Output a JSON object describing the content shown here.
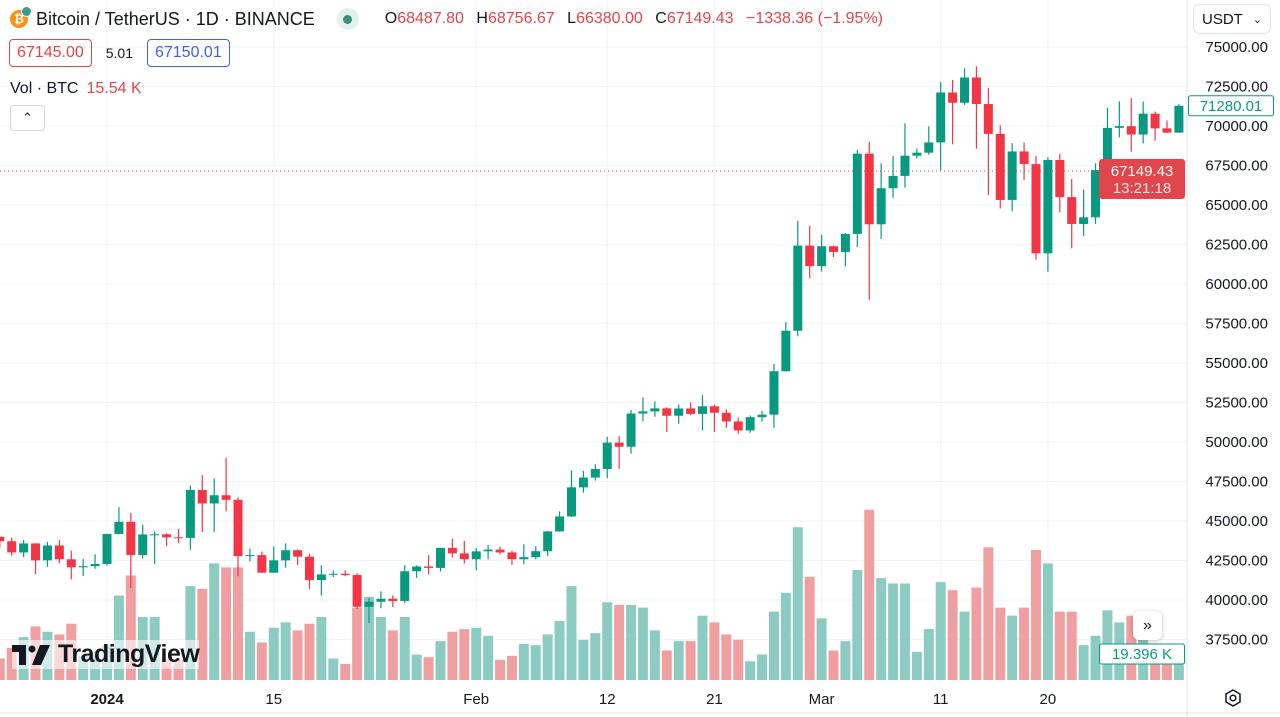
{
  "header": {
    "symbol_title": "Bitcoin / TetherUS · 1D · BINANCE",
    "coin_icon": "bitcoin-icon",
    "ohlc": {
      "o_label": "O",
      "o": "68487.80",
      "h_label": "H",
      "h": "68756.67",
      "l_label": "L",
      "l": "66380.00",
      "c_label": "C",
      "c": "67149.43",
      "change": "−1338.36 (−1.95%)"
    }
  },
  "quotes": {
    "bid": "67145.00",
    "spread": "5.01",
    "ask": "67150.01"
  },
  "volume_legend": {
    "label": "Vol · BTC",
    "value": "15.54 K"
  },
  "currency_select": {
    "value": "USDT"
  },
  "logo_text": "TradingView",
  "colors": {
    "up": "#089981",
    "down": "#f23645",
    "up_vol": "#8ccbc2",
    "down_vol": "#ef9f9f",
    "grid": "#f0f3fa"
  },
  "chart_data": {
    "type": "candlestick",
    "title": "Bitcoin / TetherUS · 1D · BINANCE",
    "ylim": [
      36000,
      76500
    ],
    "y_ticks": [
      "75000.00",
      "72500.00",
      "70000.00",
      "67500.00",
      "65000.00",
      "62500.00",
      "60000.00",
      "57500.00",
      "55000.00",
      "52500.00",
      "50000.00",
      "47500.00",
      "45000.00",
      "42500.00",
      "40000.00",
      "37500.00"
    ],
    "x_ticks": [
      {
        "date": "2024-01-01",
        "label": "2024",
        "bold": true
      },
      {
        "date": "2024-01-15",
        "label": "15"
      },
      {
        "date": "2024-02-01",
        "label": "Feb"
      },
      {
        "date": "2024-02-12",
        "label": "12"
      },
      {
        "date": "2024-02-21",
        "label": "21"
      },
      {
        "date": "2024-03-01",
        "label": "Mar"
      },
      {
        "date": "2024-03-11",
        "label": "11"
      },
      {
        "date": "2024-03-20",
        "label": "20"
      }
    ],
    "grid": true,
    "last_price_tag": {
      "price": "67149.43",
      "countdown": "13:21:18"
    },
    "last_visible_close_tag": "71280.01",
    "last_volume_tag": "19.396 K",
    "columns": [
      "date",
      "open",
      "high",
      "low",
      "close",
      "volume_k"
    ],
    "candles": [
      [
        "2023-12-23",
        44000,
        44000,
        43300,
        43720,
        16
      ],
      [
        "2023-12-24",
        43720,
        43950,
        42800,
        43010,
        24
      ],
      [
        "2023-12-25",
        43010,
        43790,
        42720,
        43580,
        32
      ],
      [
        "2023-12-26",
        43580,
        43600,
        41640,
        42510,
        40
      ],
      [
        "2023-12-27",
        42510,
        43680,
        42090,
        43450,
        36
      ],
      [
        "2023-12-28",
        43450,
        43790,
        42320,
        42580,
        34
      ],
      [
        "2023-12-29",
        42580,
        43120,
        41300,
        42070,
        42
      ],
      [
        "2023-12-30",
        42070,
        42610,
        41520,
        42140,
        18
      ],
      [
        "2023-12-31",
        42140,
        42890,
        41970,
        42280,
        21
      ],
      [
        "2024-01-01",
        42280,
        44180,
        42180,
        44180,
        26
      ],
      [
        "2024-01-02",
        44180,
        45880,
        44150,
        44950,
        63
      ],
      [
        "2024-01-03",
        44950,
        45500,
        40750,
        42850,
        78
      ],
      [
        "2024-01-04",
        42850,
        44770,
        42630,
        44150,
        47
      ],
      [
        "2024-01-05",
        44150,
        44340,
        42290,
        44160,
        47
      ],
      [
        "2024-01-06",
        44160,
        44230,
        43400,
        43970,
        15
      ],
      [
        "2024-01-07",
        43970,
        44500,
        43600,
        43930,
        15
      ],
      [
        "2024-01-08",
        43930,
        47250,
        43170,
        46960,
        70
      ],
      [
        "2024-01-09",
        46960,
        47890,
        44300,
        46110,
        68
      ],
      [
        "2024-01-10",
        46110,
        47700,
        44300,
        46630,
        87
      ],
      [
        "2024-01-11",
        46630,
        49000,
        45610,
        46340,
        84
      ],
      [
        "2024-01-12",
        46340,
        46500,
        41500,
        42780,
        84
      ],
      [
        "2024-01-13",
        42780,
        43250,
        42440,
        42840,
        36
      ],
      [
        "2024-01-14",
        42840,
        43070,
        41720,
        41730,
        28
      ],
      [
        "2024-01-15",
        41730,
        43400,
        41720,
        42510,
        39
      ],
      [
        "2024-01-16",
        42510,
        43580,
        42050,
        43150,
        43
      ],
      [
        "2024-01-17",
        43150,
        43200,
        42200,
        42740,
        37
      ],
      [
        "2024-01-18",
        42740,
        42930,
        40680,
        41260,
        42
      ],
      [
        "2024-01-19",
        41260,
        42200,
        40280,
        41620,
        47
      ],
      [
        "2024-01-20",
        41620,
        41870,
        41450,
        41660,
        16
      ],
      [
        "2024-01-21",
        41660,
        41880,
        41500,
        41580,
        12
      ],
      [
        "2024-01-22",
        41580,
        41690,
        39430,
        39570,
        54
      ],
      [
        "2024-01-23",
        39570,
        40130,
        38550,
        39890,
        62
      ],
      [
        "2024-01-24",
        39890,
        40550,
        39480,
        40080,
        47
      ],
      [
        "2024-01-25",
        40080,
        40290,
        39550,
        39940,
        37
      ],
      [
        "2024-01-26",
        39940,
        42200,
        39820,
        41820,
        47
      ],
      [
        "2024-01-27",
        41820,
        42190,
        41400,
        42120,
        19
      ],
      [
        "2024-01-28",
        42120,
        42840,
        41620,
        42030,
        17
      ],
      [
        "2024-01-29",
        42030,
        43310,
        41800,
        43300,
        29
      ],
      [
        "2024-01-30",
        43300,
        43880,
        42680,
        42950,
        36
      ],
      [
        "2024-01-31",
        42950,
        43750,
        42300,
        42580,
        38
      ],
      [
        "2024-02-01",
        42580,
        43290,
        41880,
        43080,
        39
      ],
      [
        "2024-02-02",
        43080,
        43490,
        42580,
        43190,
        33
      ],
      [
        "2024-02-03",
        43190,
        43380,
        42880,
        43010,
        15
      ],
      [
        "2024-02-04",
        43010,
        43120,
        42220,
        42580,
        18
      ],
      [
        "2024-02-05",
        42580,
        43530,
        42260,
        42710,
        27
      ],
      [
        "2024-02-06",
        42710,
        43400,
        42570,
        43090,
        26
      ],
      [
        "2024-02-07",
        43090,
        44380,
        42790,
        44340,
        34
      ],
      [
        "2024-02-08",
        44340,
        45610,
        44330,
        45290,
        44
      ],
      [
        "2024-02-09",
        45290,
        48200,
        45250,
        47130,
        70
      ],
      [
        "2024-02-10",
        47130,
        48170,
        46800,
        47750,
        30
      ],
      [
        "2024-02-11",
        47750,
        48590,
        47560,
        48290,
        35
      ],
      [
        "2024-02-12",
        48290,
        50330,
        47700,
        49960,
        58
      ],
      [
        "2024-02-13",
        49960,
        50370,
        48300,
        49700,
        56
      ],
      [
        "2024-02-14",
        49700,
        52040,
        49260,
        51800,
        56
      ],
      [
        "2024-02-15",
        51800,
        52820,
        51310,
        51940,
        54
      ],
      [
        "2024-02-16",
        51940,
        52570,
        51600,
        52130,
        37
      ],
      [
        "2024-02-17",
        52130,
        52200,
        50630,
        51660,
        22
      ],
      [
        "2024-02-18",
        51660,
        52370,
        51160,
        52120,
        29
      ],
      [
        "2024-02-19",
        52120,
        52490,
        51680,
        51780,
        29
      ],
      [
        "2024-02-20",
        51780,
        52980,
        50750,
        52260,
        48
      ],
      [
        "2024-02-21",
        52260,
        52370,
        50630,
        51850,
        43
      ],
      [
        "2024-02-22",
        51850,
        52070,
        50900,
        51300,
        34
      ],
      [
        "2024-02-23",
        51300,
        51550,
        50520,
        50730,
        30
      ],
      [
        "2024-02-24",
        50730,
        51680,
        50580,
        51570,
        14
      ],
      [
        "2024-02-25",
        51570,
        51960,
        51290,
        51730,
        19
      ],
      [
        "2024-02-26",
        51730,
        54940,
        50900,
        54480,
        51
      ],
      [
        "2024-02-27",
        54480,
        57590,
        54450,
        57040,
        65
      ],
      [
        "2024-02-28",
        57040,
        64000,
        56690,
        62430,
        114
      ],
      [
        "2024-02-29",
        62430,
        63680,
        60360,
        61130,
        77
      ],
      [
        "2024-03-01",
        61130,
        63110,
        60790,
        62390,
        46
      ],
      [
        "2024-03-02",
        62390,
        62430,
        61710,
        62030,
        22
      ],
      [
        "2024-03-03",
        62030,
        63230,
        61120,
        63170,
        29
      ],
      [
        "2024-03-04",
        63170,
        68500,
        62330,
        68250,
        82
      ],
      [
        "2024-03-05",
        68250,
        69000,
        59000,
        63780,
        127
      ],
      [
        "2024-03-06",
        63780,
        67640,
        62850,
        66060,
        76
      ],
      [
        "2024-03-07",
        66060,
        68100,
        65450,
        66840,
        72
      ],
      [
        "2024-03-08",
        66840,
        70170,
        66100,
        68120,
        72
      ],
      [
        "2024-03-09",
        68120,
        68570,
        67940,
        68310,
        21
      ],
      [
        "2024-03-10",
        68310,
        69980,
        68180,
        68960,
        38
      ],
      [
        "2024-03-11",
        68960,
        72800,
        67190,
        72120,
        73
      ],
      [
        "2024-03-12",
        72120,
        72920,
        68840,
        71470,
        67
      ],
      [
        "2024-03-13",
        71470,
        73650,
        71330,
        73070,
        51
      ],
      [
        "2024-03-14",
        73070,
        73780,
        68560,
        71390,
        69
      ],
      [
        "2024-03-15",
        71390,
        72420,
        65630,
        69500,
        99
      ],
      [
        "2024-03-16",
        69500,
        70050,
        64780,
        65320,
        54
      ],
      [
        "2024-03-17",
        65320,
        68920,
        64600,
        68390,
        48
      ],
      [
        "2024-03-18",
        68390,
        68960,
        66580,
        67590,
        54
      ],
      [
        "2024-03-19",
        67590,
        68100,
        61540,
        61940,
        97
      ],
      [
        "2024-03-20",
        61940,
        68030,
        60780,
        67850,
        87
      ],
      [
        "2024-03-21",
        67850,
        68240,
        64530,
        65500,
        51
      ],
      [
        "2024-03-22",
        65500,
        66650,
        62260,
        63800,
        51
      ],
      [
        "2024-03-23",
        63800,
        65980,
        63050,
        64220,
        26
      ],
      [
        "2024-03-24",
        64220,
        67640,
        63800,
        67210,
        33
      ],
      [
        "2024-03-25",
        67210,
        71150,
        66390,
        69880,
        52
      ],
      [
        "2024-03-26",
        69880,
        71560,
        69280,
        69990,
        43
      ],
      [
        "2024-03-27",
        69990,
        71770,
        68380,
        69460,
        48
      ],
      [
        "2024-03-28",
        69460,
        71550,
        68900,
        70780,
        32
      ],
      [
        "2024-03-29",
        70780,
        70910,
        69070,
        69850,
        25
      ],
      [
        "2024-03-30",
        69850,
        70350,
        69550,
        69580,
        15
      ],
      [
        "2024-03-31",
        69580,
        71370,
        69570,
        71280.01,
        19.396
      ]
    ]
  }
}
